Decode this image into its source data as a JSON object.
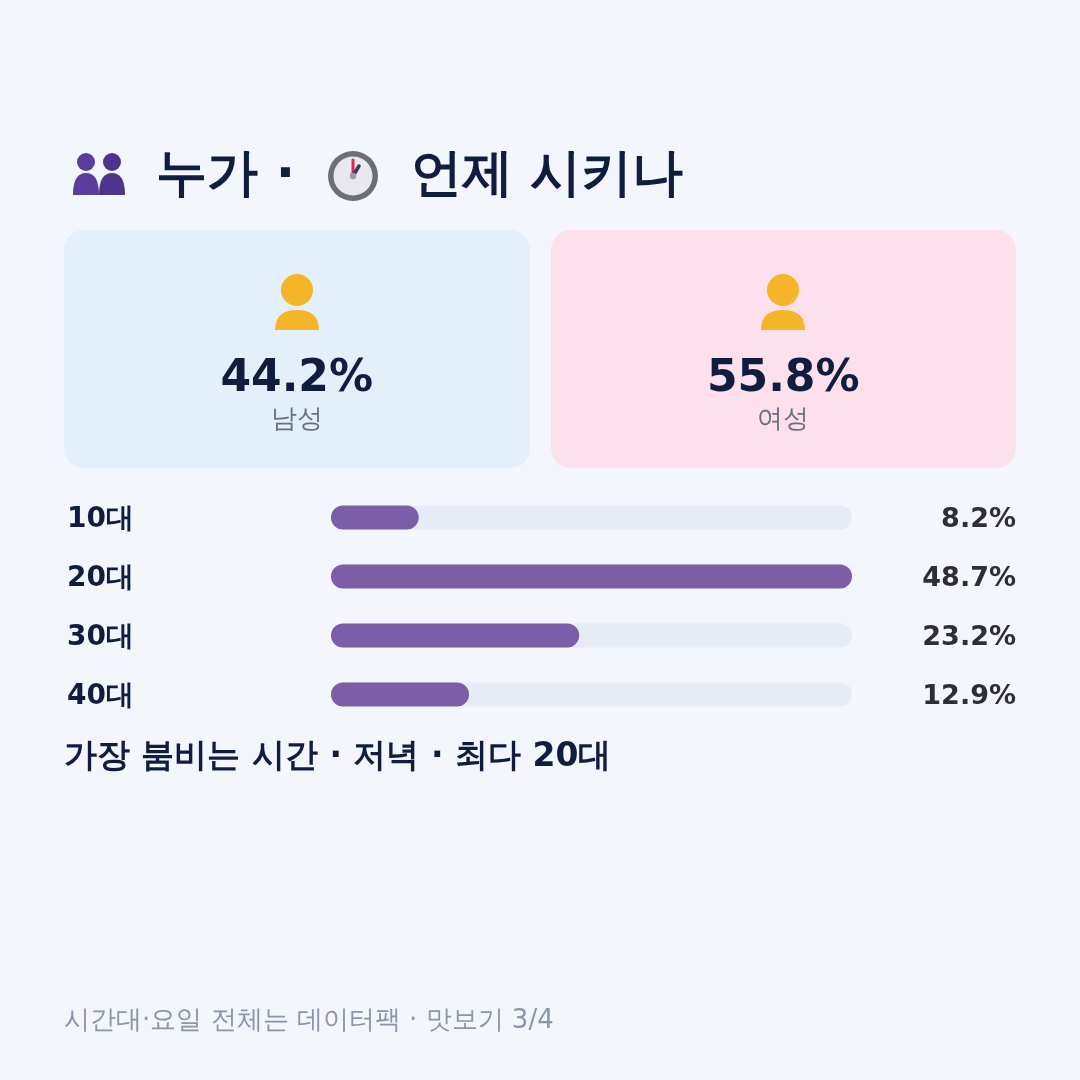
{
  "chart_data": [
    {
      "type": "other",
      "title": "누가 · 언제 시키나",
      "categories": [
        "남성",
        "여성"
      ],
      "value_labels": [
        "44.2%",
        "55.8%"
      ],
      "colors": [
        "#e3f0fc",
        "#fde0ec"
      ]
    },
    {
      "type": "bar",
      "orientation": "horizontal",
      "categories": [
        "10대",
        "20대",
        "30대",
        "40대"
      ],
      "values": [
        8.2,
        48.7,
        23.2,
        12.9
      ],
      "value_labels": [
        "8.2%",
        "48.7%",
        "23.2%",
        "12.9%"
      ],
      "color": "#7b5ea7",
      "xlim": [
        0,
        48.7
      ],
      "tick_labels": "y",
      "annotations": [
        "가장 붐비는 시간 · 저녁 · 최다 20대",
        "시간대·요일 전체는 데이터팩 · 맛보기 3/4"
      ]
    }
  ]
}
